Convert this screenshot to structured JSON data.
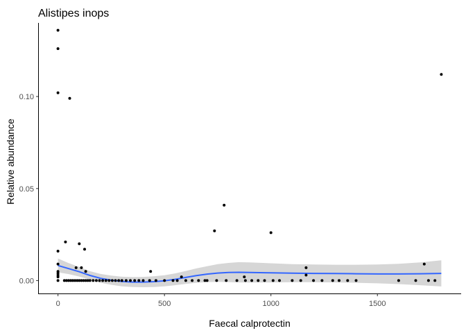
{
  "chart_data": {
    "type": "scatter",
    "title": "Alistipes inops",
    "xlabel": "Faecal calprotectin",
    "ylabel": "Relative abundance",
    "xlim": [
      -90,
      1890
    ],
    "ylim": [
      -0.007,
      0.14
    ],
    "xticks": [
      0,
      500,
      1000,
      1500
    ],
    "xtick_labels": [
      "0",
      "500",
      "1000",
      "1500"
    ],
    "yticks": [
      0.0,
      0.05,
      0.1
    ],
    "ytick_labels": [
      "0.00",
      "0.05",
      "0.10"
    ],
    "grid": false,
    "legend": "none",
    "colors": {
      "points": "#000000",
      "smooth_line": "#3366FF",
      "confidence_band": "#999999"
    },
    "points": [
      {
        "x": 0,
        "y": 0.136
      },
      {
        "x": 0,
        "y": 0.126
      },
      {
        "x": 0,
        "y": 0.102
      },
      {
        "x": 55,
        "y": 0.099
      },
      {
        "x": 1800,
        "y": 0.112
      },
      {
        "x": 780,
        "y": 0.041
      },
      {
        "x": 735,
        "y": 0.027
      },
      {
        "x": 1000,
        "y": 0.026
      },
      {
        "x": 35,
        "y": 0.021
      },
      {
        "x": 100,
        "y": 0.02
      },
      {
        "x": 125,
        "y": 0.017
      },
      {
        "x": 0,
        "y": 0.016
      },
      {
        "x": 1720,
        "y": 0.009
      },
      {
        "x": 0,
        "y": 0.009
      },
      {
        "x": 1165,
        "y": 0.007
      },
      {
        "x": 85,
        "y": 0.007
      },
      {
        "x": 110,
        "y": 0.007
      },
      {
        "x": 0,
        "y": 0.005
      },
      {
        "x": 130,
        "y": 0.005
      },
      {
        "x": 435,
        "y": 0.005
      },
      {
        "x": 0,
        "y": 0.004
      },
      {
        "x": 0,
        "y": 0.003
      },
      {
        "x": 1165,
        "y": 0.003
      },
      {
        "x": 0,
        "y": 0.002
      },
      {
        "x": 580,
        "y": 0.002
      },
      {
        "x": 875,
        "y": 0.002
      },
      {
        "x": 0,
        "y": 0.0
      },
      {
        "x": 30,
        "y": 0.0
      },
      {
        "x": 40,
        "y": 0.0
      },
      {
        "x": 50,
        "y": 0.0
      },
      {
        "x": 60,
        "y": 0.0
      },
      {
        "x": 70,
        "y": 0.0
      },
      {
        "x": 80,
        "y": 0.0
      },
      {
        "x": 90,
        "y": 0.0
      },
      {
        "x": 100,
        "y": 0.0
      },
      {
        "x": 110,
        "y": 0.0
      },
      {
        "x": 120,
        "y": 0.0
      },
      {
        "x": 130,
        "y": 0.0
      },
      {
        "x": 140,
        "y": 0.0
      },
      {
        "x": 150,
        "y": 0.0
      },
      {
        "x": 165,
        "y": 0.0
      },
      {
        "x": 180,
        "y": 0.0
      },
      {
        "x": 195,
        "y": 0.0
      },
      {
        "x": 210,
        "y": 0.0
      },
      {
        "x": 225,
        "y": 0.0
      },
      {
        "x": 240,
        "y": 0.0
      },
      {
        "x": 255,
        "y": 0.0
      },
      {
        "x": 270,
        "y": 0.0
      },
      {
        "x": 285,
        "y": 0.0
      },
      {
        "x": 300,
        "y": 0.0
      },
      {
        "x": 320,
        "y": 0.0
      },
      {
        "x": 340,
        "y": 0.0
      },
      {
        "x": 360,
        "y": 0.0
      },
      {
        "x": 380,
        "y": 0.0
      },
      {
        "x": 400,
        "y": 0.0
      },
      {
        "x": 430,
        "y": 0.0
      },
      {
        "x": 460,
        "y": 0.0
      },
      {
        "x": 500,
        "y": 0.0
      },
      {
        "x": 540,
        "y": 0.0
      },
      {
        "x": 560,
        "y": 0.0
      },
      {
        "x": 600,
        "y": 0.0
      },
      {
        "x": 630,
        "y": 0.0
      },
      {
        "x": 660,
        "y": 0.0
      },
      {
        "x": 690,
        "y": 0.0
      },
      {
        "x": 700,
        "y": 0.0
      },
      {
        "x": 745,
        "y": 0.0
      },
      {
        "x": 790,
        "y": 0.0
      },
      {
        "x": 840,
        "y": 0.0
      },
      {
        "x": 880,
        "y": 0.0
      },
      {
        "x": 910,
        "y": 0.0
      },
      {
        "x": 940,
        "y": 0.0
      },
      {
        "x": 970,
        "y": 0.0
      },
      {
        "x": 1010,
        "y": 0.0
      },
      {
        "x": 1040,
        "y": 0.0
      },
      {
        "x": 1100,
        "y": 0.0
      },
      {
        "x": 1140,
        "y": 0.0
      },
      {
        "x": 1200,
        "y": 0.0
      },
      {
        "x": 1240,
        "y": 0.0
      },
      {
        "x": 1290,
        "y": 0.0
      },
      {
        "x": 1320,
        "y": 0.0
      },
      {
        "x": 1360,
        "y": 0.0
      },
      {
        "x": 1400,
        "y": 0.0
      },
      {
        "x": 1600,
        "y": 0.0
      },
      {
        "x": 1680,
        "y": 0.0
      },
      {
        "x": 1740,
        "y": 0.0
      },
      {
        "x": 1770,
        "y": 0.0
      }
    ],
    "smooth_line": [
      {
        "x": 0,
        "y": 0.0082
      },
      {
        "x": 50,
        "y": 0.0065
      },
      {
        "x": 100,
        "y": 0.0048
      },
      {
        "x": 150,
        "y": 0.0028
      },
      {
        "x": 200,
        "y": 0.0012
      },
      {
        "x": 250,
        "y": 0.0002
      },
      {
        "x": 300,
        "y": -0.0005
      },
      {
        "x": 350,
        "y": -0.0008
      },
      {
        "x": 400,
        "y": -0.0008
      },
      {
        "x": 450,
        "y": -0.0006
      },
      {
        "x": 500,
        "y": -0.0001
      },
      {
        "x": 550,
        "y": 0.0007
      },
      {
        "x": 600,
        "y": 0.0017
      },
      {
        "x": 650,
        "y": 0.0027
      },
      {
        "x": 700,
        "y": 0.0035
      },
      {
        "x": 750,
        "y": 0.0041
      },
      {
        "x": 800,
        "y": 0.0044
      },
      {
        "x": 850,
        "y": 0.0045
      },
      {
        "x": 900,
        "y": 0.0044
      },
      {
        "x": 1000,
        "y": 0.0042
      },
      {
        "x": 1100,
        "y": 0.004
      },
      {
        "x": 1200,
        "y": 0.0039
      },
      {
        "x": 1300,
        "y": 0.0038
      },
      {
        "x": 1400,
        "y": 0.0037
      },
      {
        "x": 1500,
        "y": 0.0036
      },
      {
        "x": 1600,
        "y": 0.0036
      },
      {
        "x": 1700,
        "y": 0.0037
      },
      {
        "x": 1800,
        "y": 0.0039
      }
    ],
    "confidence_band": [
      {
        "x": 0,
        "lo": 0.0045,
        "hi": 0.012
      },
      {
        "x": 50,
        "lo": 0.0035,
        "hi": 0.0095
      },
      {
        "x": 100,
        "lo": 0.0022,
        "hi": 0.0074
      },
      {
        "x": 150,
        "lo": 0.0005,
        "hi": 0.0051
      },
      {
        "x": 200,
        "lo": -0.0012,
        "hi": 0.0036
      },
      {
        "x": 250,
        "lo": -0.0023,
        "hi": 0.0027
      },
      {
        "x": 300,
        "lo": -0.0031,
        "hi": 0.0021
      },
      {
        "x": 350,
        "lo": -0.0035,
        "hi": 0.0019
      },
      {
        "x": 400,
        "lo": -0.0036,
        "hi": 0.002
      },
      {
        "x": 450,
        "lo": -0.0035,
        "hi": 0.0023
      },
      {
        "x": 500,
        "lo": -0.0031,
        "hi": 0.0029
      },
      {
        "x": 550,
        "lo": -0.0025,
        "hi": 0.0039
      },
      {
        "x": 600,
        "lo": -0.0018,
        "hi": 0.0052
      },
      {
        "x": 650,
        "lo": -0.0012,
        "hi": 0.0066
      },
      {
        "x": 700,
        "lo": -0.0008,
        "hi": 0.0078
      },
      {
        "x": 750,
        "lo": -0.0007,
        "hi": 0.0089
      },
      {
        "x": 800,
        "lo": -0.0008,
        "hi": 0.0096
      },
      {
        "x": 850,
        "lo": -0.001,
        "hi": 0.01
      },
      {
        "x": 900,
        "lo": -0.0011,
        "hi": 0.0099
      },
      {
        "x": 1000,
        "lo": -0.001,
        "hi": 0.0094
      },
      {
        "x": 1100,
        "lo": -0.0009,
        "hi": 0.0089
      },
      {
        "x": 1200,
        "lo": -0.0009,
        "hi": 0.0087
      },
      {
        "x": 1300,
        "lo": -0.001,
        "hi": 0.0086
      },
      {
        "x": 1400,
        "lo": -0.0012,
        "hi": 0.0086
      },
      {
        "x": 1500,
        "lo": -0.0015,
        "hi": 0.0087
      },
      {
        "x": 1600,
        "lo": -0.0019,
        "hi": 0.0091
      },
      {
        "x": 1700,
        "lo": -0.0025,
        "hi": 0.0099
      },
      {
        "x": 1800,
        "lo": -0.0032,
        "hi": 0.011
      }
    ]
  }
}
